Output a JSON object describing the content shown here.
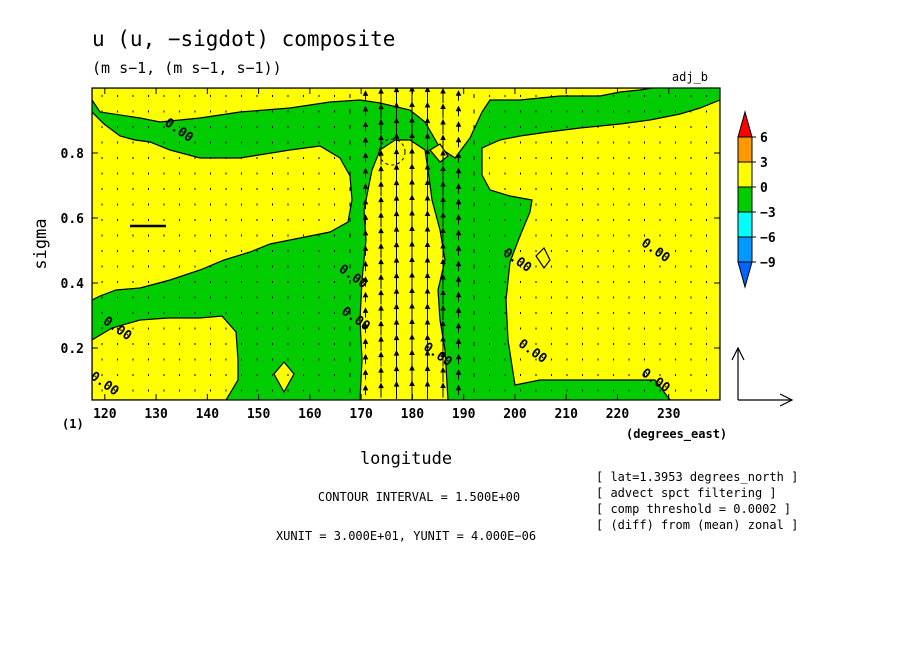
{
  "chart_data": {
    "type": "contour",
    "title": "u (u, −sigdot) composite",
    "subtitle": "(m s−1, (m s−1, s−1))",
    "tag": "adj_b",
    "xlabel": "longitude",
    "xunit_label": "(degrees_east)",
    "ylabel": "sigma",
    "y_extra_label": "(1)",
    "xlim": [
      117.5,
      240
    ],
    "ylim": [
      1.0,
      0.04
    ],
    "x_ticks": [
      "120",
      "130",
      "140",
      "150",
      "160",
      "170",
      "180",
      "190",
      "200",
      "210",
      "220",
      "230"
    ],
    "y_ticks": [
      "0.2",
      "0.4",
      "0.6",
      "0.8"
    ],
    "contour_labels": [
      {
        "text": "0.00",
        "x": 119.5,
        "y": 0.08
      },
      {
        "text": "0.00",
        "x": 122,
        "y": 0.25
      },
      {
        "text": "0.00",
        "x": 168.5,
        "y": 0.28
      },
      {
        "text": "0.00",
        "x": 168,
        "y": 0.41
      },
      {
        "text": "0.00",
        "x": 184.5,
        "y": 0.17
      },
      {
        "text": "0.00",
        "x": 203,
        "y": 0.18
      },
      {
        "text": "0.00",
        "x": 200,
        "y": 0.46
      },
      {
        "text": "0.00",
        "x": 227,
        "y": 0.09
      },
      {
        "text": "0.00",
        "x": 227,
        "y": 0.49
      },
      {
        "text": "0.00",
        "x": 134,
        "y": 0.86
      }
    ],
    "colorbar": {
      "levels": [
        "6",
        "3",
        "0",
        "−3",
        "−6",
        "−9"
      ],
      "colors": [
        "#ff0000",
        "#ff9900",
        "#ffff00",
        "#00cc00",
        "#00ffff",
        "#0099ff",
        "#0066ff"
      ]
    },
    "fill_colors": {
      "positive": "#ffff00",
      "negative": "#00cc00"
    },
    "notes": {
      "contour_interval": "CONTOUR INTERVAL = 1.500E+00",
      "units": "XUNIT = 3.000E+01, YUNIT = 4.000E−06",
      "info": [
        "[ lat=1.3953 degrees_north ]",
        "[ advect spct filtering ]",
        "[ comp threshold = 0.0002 ]",
        "[ (diff) from (mean) zonal ]"
      ]
    }
  }
}
